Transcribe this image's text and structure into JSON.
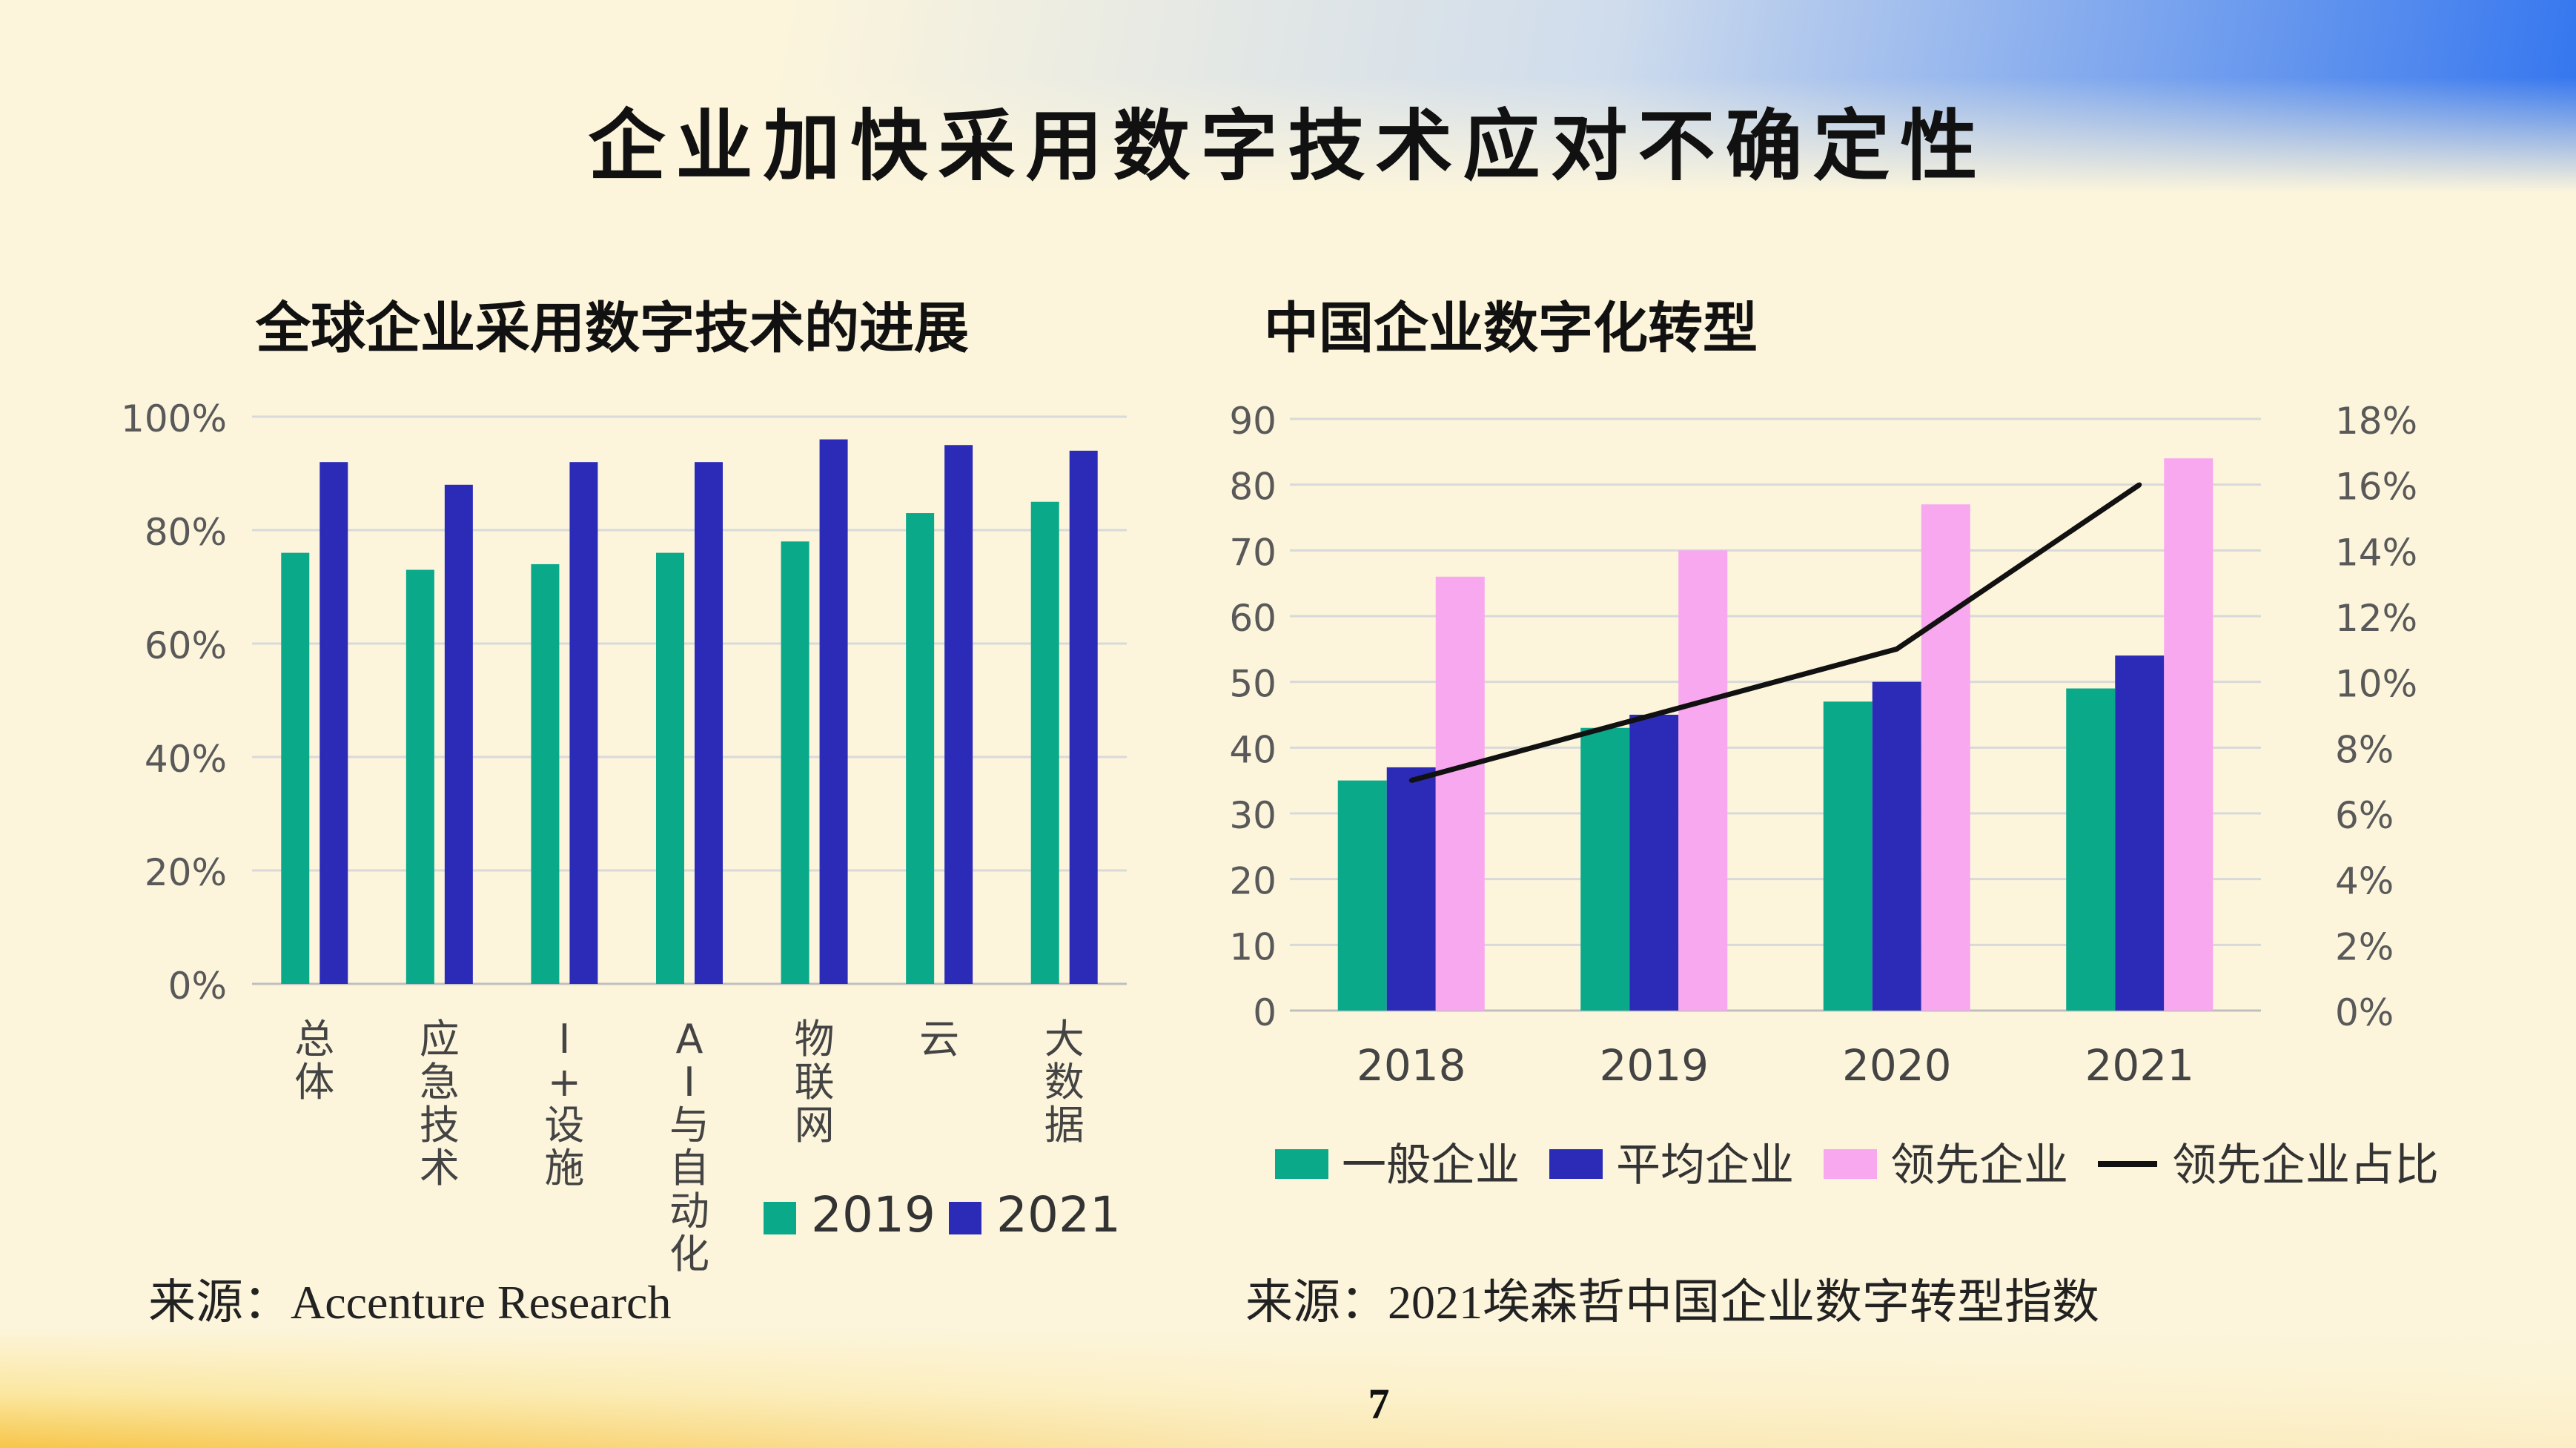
{
  "slide": {
    "title": "企业加快采用数字技术应对不确定性",
    "page_number": "7",
    "sources": {
      "left": "来源：Accenture Research",
      "right": "来源：2021埃森哲中国企业数字转型指数"
    }
  },
  "colors": {
    "teal": "#0aa98a",
    "blue": "#2b2bb8",
    "pink": "#f7a8ef",
    "line": "#111111",
    "grid": "#d9d9d9",
    "axis_text": "#595959"
  },
  "chart_data": [
    {
      "type": "bar",
      "title": "全球企业采用数字技术的进展",
      "categories": [
        "总体",
        "应急技术",
        "I+设施",
        "AI与自动化",
        "物联网",
        "云",
        "大数据"
      ],
      "y_ticks": [
        "0%",
        "20%",
        "40%",
        "60%",
        "80%",
        "100%"
      ],
      "ylim": [
        0,
        100
      ],
      "unit": "%",
      "grid": true,
      "legend": "bottom-right",
      "series": [
        {
          "name": "2019",
          "color": "#0aa98a",
          "values": [
            76,
            73,
            74,
            76,
            78,
            83,
            85
          ]
        },
        {
          "name": "2021",
          "color": "#2b2bb8",
          "values": [
            92,
            88,
            92,
            92,
            96,
            95,
            94
          ]
        }
      ]
    },
    {
      "type": "bar",
      "title": "中国企业数字化转型",
      "categories": [
        "2018",
        "2019",
        "2020",
        "2021"
      ],
      "y_ticks": [
        "0",
        "10",
        "20",
        "30",
        "40",
        "50",
        "60",
        "70",
        "80",
        "90"
      ],
      "y2_ticks": [
        "0%",
        "2%",
        "4%",
        "6%",
        "8%",
        "10%",
        "12%",
        "14%",
        "16%",
        "18%"
      ],
      "ylim": [
        0,
        90
      ],
      "y2lim": [
        0,
        18
      ],
      "grid": true,
      "legend": "bottom",
      "series": [
        {
          "name": "一般企业",
          "color": "#0aa98a",
          "values": [
            35,
            43,
            47,
            49
          ]
        },
        {
          "name": "平均企业",
          "color": "#2b2bb8",
          "values": [
            37,
            45,
            50,
            54
          ]
        },
        {
          "name": "领先企业",
          "color": "#f7a8ef",
          "values": [
            66,
            70,
            77,
            84
          ]
        }
      ],
      "line_series": {
        "name": "领先企业占比",
        "color": "#111111",
        "axis": "right",
        "unit": "%",
        "values": [
          7,
          9,
          11,
          16
        ]
      }
    }
  ]
}
